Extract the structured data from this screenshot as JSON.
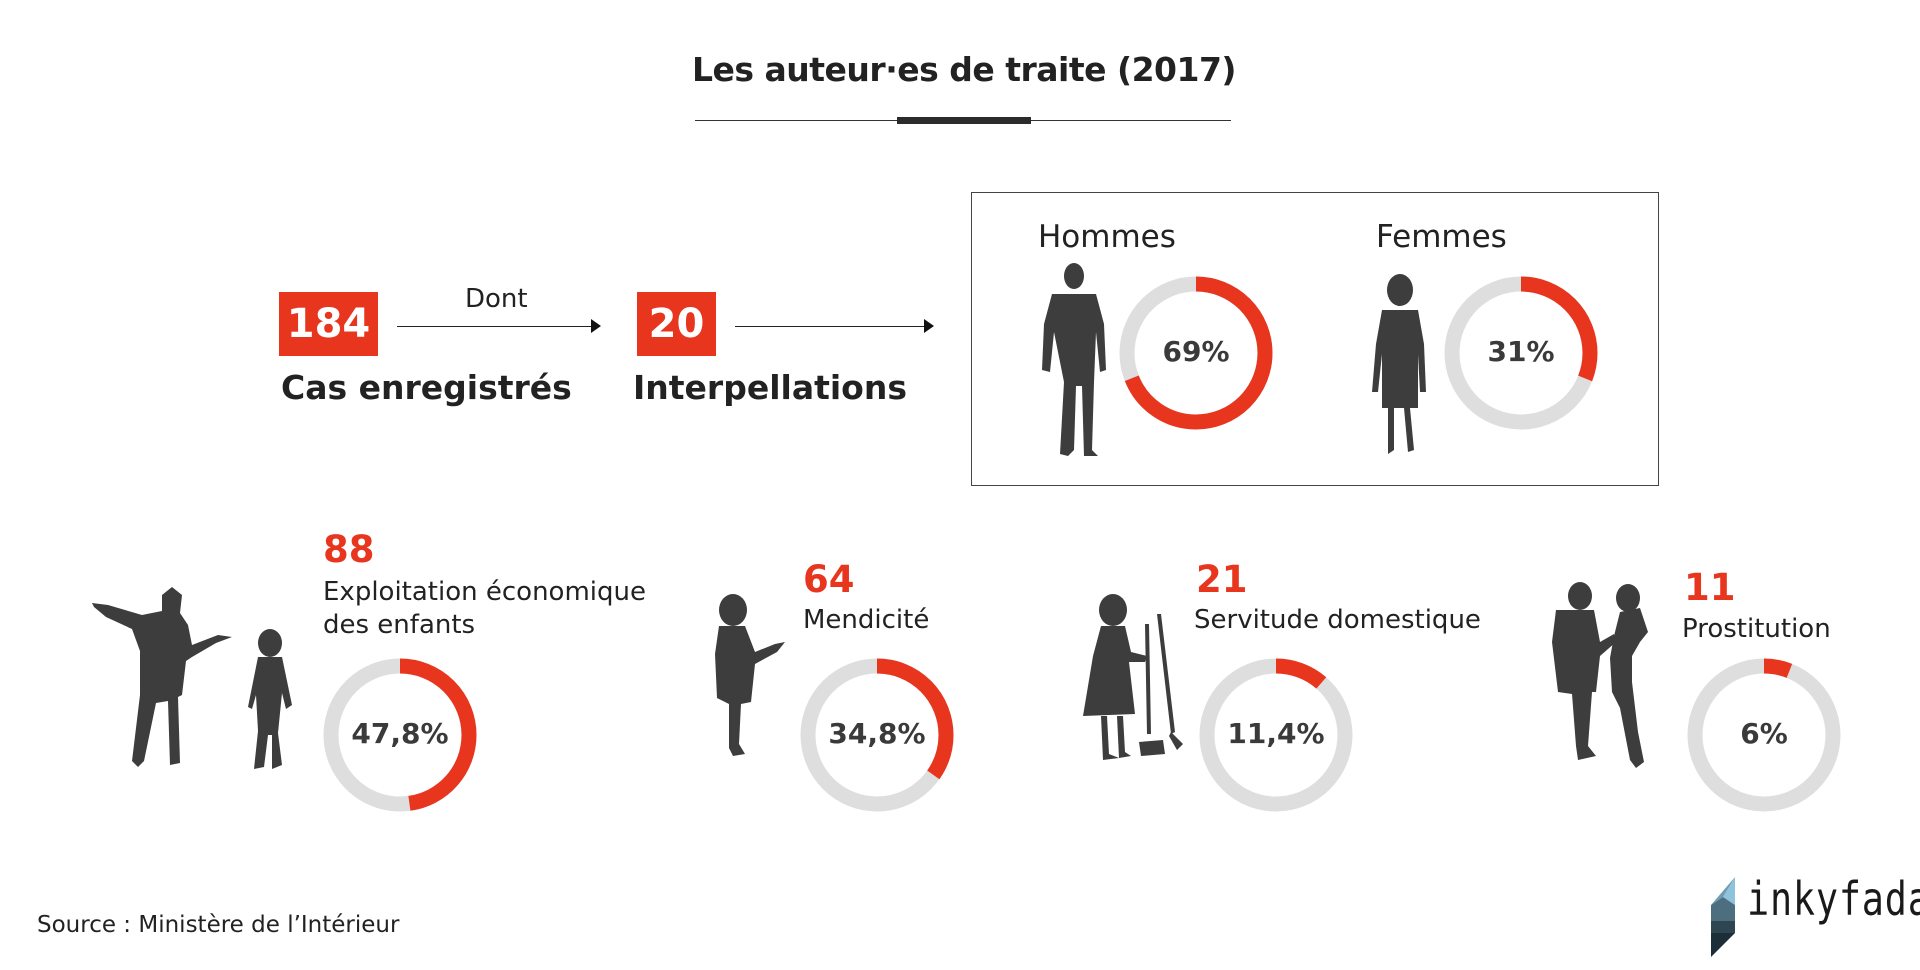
{
  "title": "Les auteur·es de traite (2017)",
  "flow": {
    "cases": {
      "value": "184",
      "label": "Cas enregistrés"
    },
    "connector": "Dont",
    "arrests": {
      "value": "20",
      "label": "Interpellations"
    }
  },
  "source": "Source : Ministère de l’Intérieur",
  "logo": "inkyfada",
  "colors": {
    "accent": "#e8351e",
    "ring": "#dedede",
    "silhouette": "#3d3d3d"
  },
  "chart_data": {
    "type": "donut",
    "title": "Les auteur·es de traite (2017)",
    "gender": [
      {
        "label": "Hommes",
        "percent": 69,
        "percent_label": "69%"
      },
      {
        "label": "Femmes",
        "percent": 31,
        "percent_label": "31%"
      }
    ],
    "categories": [
      {
        "count": "88",
        "label": "Exploitation économique des enfants",
        "label_lines": [
          "Exploitation économique",
          "des enfants"
        ],
        "percent": 47.8,
        "percent_label": "47,8%"
      },
      {
        "count": "64",
        "label": "Mendicité",
        "label_lines": [
          "Mendicité"
        ],
        "percent": 34.8,
        "percent_label": "34,8%"
      },
      {
        "count": "21",
        "label": "Servitude domestique",
        "label_lines": [
          "Servitude domestique"
        ],
        "percent": 11.4,
        "percent_label": "11,4%"
      },
      {
        "count": "11",
        "label": "Prostitution",
        "label_lines": [
          "Prostitution"
        ],
        "percent": 6,
        "percent_label": "6%"
      }
    ]
  }
}
